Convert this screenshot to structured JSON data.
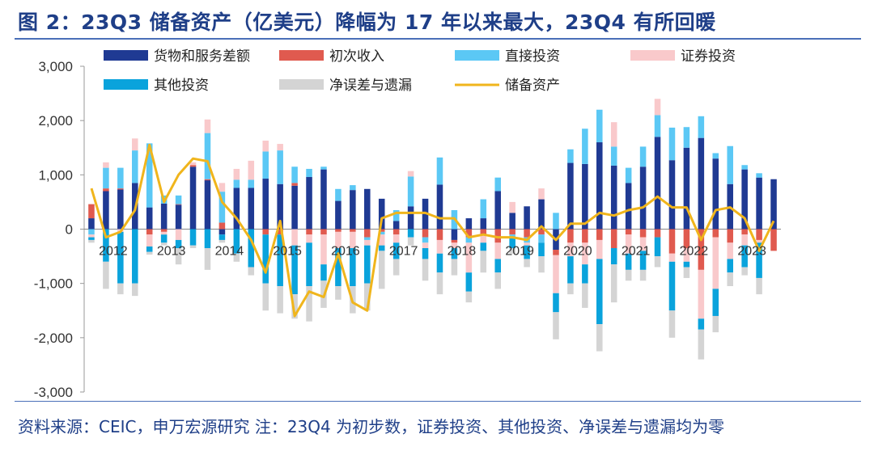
{
  "title": "图 2：23Q3 储备资产（亿美元）降幅为 17 年以来最大，23Q4 有所回暖",
  "source": "资料来源：CEIC，申万宏源研究 注：23Q4 为初步数，证券投资、其他投资、净误差与遗漏均为零",
  "chart_data": {
    "type": "bar",
    "subtype": "stacked bar + line",
    "title": "23Q3 储备资产（亿美元）降幅为 17 年以来最大，23Q4 有所回暖",
    "xlabel": "",
    "ylabel": "",
    "ylim": [
      -3000,
      3000
    ],
    "yticks": [
      -3000,
      -2000,
      -1000,
      0,
      1000,
      2000,
      3000
    ],
    "ytick_labels": [
      "-3,000",
      "-2,000",
      "-1,000",
      "0",
      "1,000",
      "2,000",
      "3,000"
    ],
    "x_year_labels": [
      "2012",
      "2013",
      "2014",
      "2015",
      "2016",
      "2017",
      "2018",
      "2019",
      "2020",
      "2021",
      "2022",
      "2023"
    ],
    "categories": [
      "2012Q1",
      "2012Q2",
      "2012Q3",
      "2012Q4",
      "2013Q1",
      "2013Q2",
      "2013Q3",
      "2013Q4",
      "2014Q1",
      "2014Q2",
      "2014Q3",
      "2014Q4",
      "2015Q1",
      "2015Q2",
      "2015Q3",
      "2015Q4",
      "2016Q1",
      "2016Q2",
      "2016Q3",
      "2016Q4",
      "2017Q1",
      "2017Q2",
      "2017Q3",
      "2017Q4",
      "2018Q1",
      "2018Q2",
      "2018Q3",
      "2018Q4",
      "2019Q1",
      "2019Q2",
      "2019Q3",
      "2019Q4",
      "2020Q1",
      "2020Q2",
      "2020Q3",
      "2020Q4",
      "2021Q1",
      "2021Q2",
      "2021Q3",
      "2021Q4",
      "2022Q1",
      "2022Q2",
      "2022Q3",
      "2022Q4",
      "2023Q1",
      "2023Q2",
      "2023Q3",
      "2023Q4"
    ],
    "legend_position": "top",
    "grid": false,
    "series": [
      {
        "name": "货物和服务差额",
        "kind": "bar",
        "color": "#1f3a93",
        "values": [
          200,
          700,
          730,
          850,
          400,
          470,
          450,
          1150,
          900,
          -100,
          760,
          760,
          930,
          830,
          800,
          960,
          1100,
          520,
          720,
          740,
          560,
          150,
          420,
          560,
          820,
          -200,
          200,
          200,
          700,
          300,
          420,
          550,
          -380,
          1220,
          1200,
          1600,
          1170,
          850,
          1150,
          1700,
          1270,
          1500,
          1680,
          1300,
          830,
          1100,
          950,
          920
        ]
      },
      {
        "name": "初次收入",
        "kind": "bar",
        "color": "#e05a4f",
        "values": [
          260,
          50,
          20,
          0,
          -100,
          -50,
          10,
          30,
          20,
          120,
          0,
          0,
          -100,
          -100,
          50,
          -100,
          -100,
          -50,
          -50,
          -150,
          -50,
          -100,
          0,
          -150,
          -200,
          -50,
          -150,
          -100,
          -250,
          -100,
          -150,
          -100,
          -100,
          -250,
          -250,
          -200,
          -350,
          -100,
          -150,
          -150,
          -450,
          -350,
          -750,
          -150,
          -250,
          -100,
          -200,
          -400
        ]
      },
      {
        "name": "直接投资",
        "kind": "bar",
        "color": "#5bc8f5",
        "values": [
          -100,
          380,
          380,
          600,
          1180,
          150,
          160,
          0,
          850,
          570,
          150,
          150,
          500,
          620,
          300,
          150,
          50,
          220,
          90,
          -50,
          -50,
          200,
          550,
          -100,
          500,
          350,
          -100,
          350,
          250,
          -50,
          -100,
          -150,
          300,
          250,
          650,
          600,
          350,
          280,
          370,
          400,
          600,
          380,
          400,
          100,
          700,
          80,
          80,
          0
        ]
      },
      {
        "name": "证券投资",
        "kind": "bar",
        "color": "#f9c9cb",
        "values": [
          -50,
          100,
          -50,
          220,
          -220,
          -50,
          -200,
          50,
          250,
          160,
          200,
          350,
          200,
          120,
          -300,
          -150,
          -550,
          -300,
          -300,
          -100,
          -200,
          -150,
          100,
          -100,
          -250,
          -100,
          -550,
          -150,
          -300,
          200,
          -50,
          200,
          -700,
          -250,
          -400,
          -350,
          450,
          -350,
          -250,
          300,
          -150,
          -250,
          -900,
          -950,
          -300,
          -200,
          -50,
          0
        ]
      },
      {
        "name": "其他投资",
        "kind": "bar",
        "color": "#0aa3dc",
        "values": [
          -50,
          -600,
          -950,
          -1000,
          -100,
          -150,
          -150,
          -300,
          -350,
          -100,
          -450,
          -700,
          -900,
          -950,
          -900,
          -800,
          -300,
          -700,
          -700,
          -700,
          -100,
          -300,
          -150,
          -200,
          -350,
          -200,
          -350,
          -150,
          -250,
          -200,
          -250,
          -250,
          -350,
          -500,
          -350,
          -1200,
          -300,
          -300,
          -350,
          -350,
          -900,
          -100,
          -200,
          -500,
          -250,
          -400,
          -650,
          0
        ]
      },
      {
        "name": "净误差与遗漏",
        "kind": "bar",
        "color": "#d4d4d4",
        "values": [
          -50,
          -500,
          -200,
          -230,
          -50,
          -50,
          -300,
          -50,
          -400,
          -50,
          -150,
          -150,
          -500,
          -500,
          -450,
          -650,
          -500,
          -250,
          -500,
          -500,
          -700,
          -300,
          -150,
          -400,
          -400,
          -300,
          -200,
          -400,
          -300,
          -100,
          -150,
          -300,
          -500,
          -200,
          -450,
          -500,
          -700,
          -200,
          -200,
          -200,
          -500,
          -200,
          -550,
          -300,
          -250,
          -150,
          -300,
          0
        ]
      },
      {
        "name": "储备资产",
        "kind": "line",
        "color": "#f0b51c",
        "values": [
          750,
          -150,
          -50,
          350,
          1550,
          500,
          1000,
          1300,
          1250,
          500,
          200,
          -200,
          -800,
          150,
          -1600,
          -1150,
          -1250,
          -450,
          -1350,
          -1500,
          200,
          300,
          300,
          300,
          200,
          200,
          -150,
          -100,
          -150,
          -150,
          -200,
          50,
          -200,
          100,
          100,
          300,
          250,
          350,
          400,
          600,
          400,
          400,
          -200,
          350,
          400,
          200,
          -400,
          150
        ]
      }
    ]
  }
}
